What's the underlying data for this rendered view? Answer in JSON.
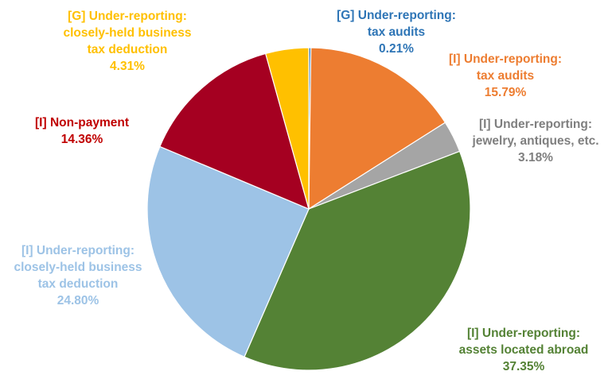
{
  "chart_data": {
    "type": "pie",
    "title": "",
    "start_angle_deg": 0,
    "direction": "clockwise",
    "slices": [
      {
        "label_lines": [
          "[G] Under-reporting:",
          "tax audits"
        ],
        "pct_label": "0.21%",
        "value": 0.21,
        "color": "#2e75b6"
      },
      {
        "label_lines": [
          "[I] Under-reporting:",
          "tax audits"
        ],
        "pct_label": "15.79%",
        "value": 15.79,
        "color": "#ed7d31"
      },
      {
        "label_lines": [
          "[I] Under-reporting:",
          "jewelry, antiques, etc."
        ],
        "pct_label": "3.18%",
        "value": 3.18,
        "color": "#a5a5a5"
      },
      {
        "label_lines": [
          "[I] Under-reporting:",
          "assets located abroad"
        ],
        "pct_label": "37.35%",
        "value": 37.35,
        "color": "#548235"
      },
      {
        "label_lines": [
          "[I] Under-reporting:",
          "closely-held business",
          "tax deduction"
        ],
        "pct_label": "24.80%",
        "value": 24.8,
        "color": "#9dc3e6"
      },
      {
        "label_lines": [
          "[I]  Non-payment"
        ],
        "pct_label": "14.36%",
        "value": 14.36,
        "color": "#a50021"
      },
      {
        "label_lines": [
          "[G] Under-reporting:",
          "closely-held business",
          "tax deduction"
        ],
        "pct_label": "4.31%",
        "value": 4.31,
        "color": "#ffc000"
      }
    ]
  }
}
